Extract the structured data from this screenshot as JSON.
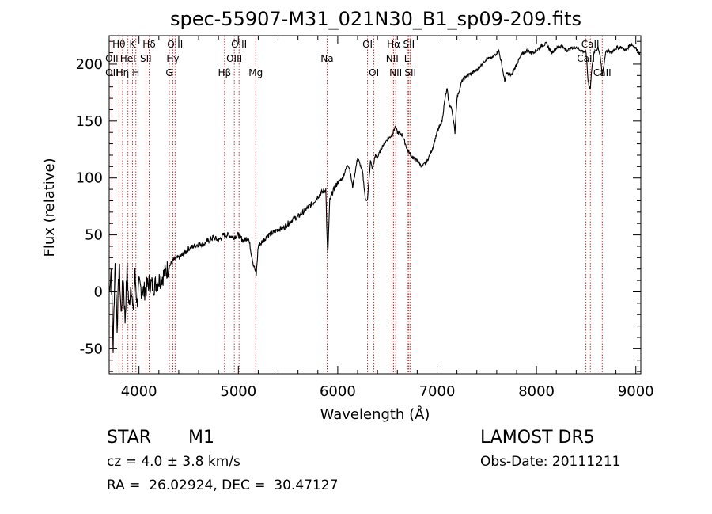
{
  "chart_data": {
    "type": "line",
    "title": "spec-55907-M31_021N30_B1_sp09-209.fits",
    "xlabel": "Wavelength (Å)",
    "ylabel": "Flux (relative)",
    "xlim": [
      3700,
      9050
    ],
    "ylim": [
      -72,
      225
    ],
    "x_ticks": [
      4000,
      5000,
      6000,
      7000,
      8000,
      9000
    ],
    "y_ticks": [
      -50,
      0,
      50,
      100,
      150,
      200
    ],
    "series": [
      {
        "x": [
          3700,
          3720,
          3740,
          3760,
          3780,
          3800,
          3820,
          3840,
          3860,
          3880,
          3900,
          3920,
          3940,
          3960,
          3980,
          4000,
          4050,
          4100,
          4150,
          4200,
          4250,
          4300,
          4350,
          4400,
          4450,
          4500,
          4550,
          4600,
          4650,
          4700,
          4750,
          4800,
          4850,
          4900,
          4950,
          5000,
          5050,
          5100,
          5150,
          5180,
          5200,
          5250,
          5300,
          5350,
          5400,
          5450,
          5500,
          5550,
          5600,
          5650,
          5700,
          5750,
          5800,
          5850,
          5880,
          5893,
          5900,
          5920,
          5950,
          6000,
          6050,
          6100,
          6120,
          6150,
          6200,
          6250,
          6280,
          6300,
          6330,
          6350,
          6380,
          6400,
          6450,
          6500,
          6550,
          6565,
          6580,
          6600,
          6650,
          6700,
          6750,
          6800,
          6850,
          6900,
          6950,
          7000,
          7050,
          7080,
          7100,
          7120,
          7150,
          7180,
          7200,
          7250,
          7300,
          7350,
          7400,
          7450,
          7500,
          7550,
          7600,
          7620,
          7650,
          7680,
          7700,
          7750,
          7800,
          7850,
          7900,
          7950,
          8000,
          8050,
          8100,
          8150,
          8200,
          8250,
          8300,
          8350,
          8400,
          8450,
          8500,
          8520,
          8542,
          8560,
          8580,
          8600,
          8620,
          8640,
          8662,
          8680,
          8700,
          8750,
          8800,
          8850,
          8900,
          8950,
          9000,
          9020,
          9040
        ],
        "y": [
          0,
          20,
          -50,
          30,
          -30,
          25,
          -20,
          15,
          -25,
          20,
          -15,
          10,
          -20,
          15,
          -10,
          5,
          0,
          8,
          5,
          10,
          15,
          22,
          28,
          30,
          33,
          38,
          40,
          42,
          42,
          45,
          48,
          45,
          50,
          50,
          48,
          50,
          45,
          48,
          25,
          15,
          40,
          45,
          50,
          52,
          55,
          56,
          60,
          64,
          66,
          70,
          74,
          78,
          84,
          88,
          90,
          45,
          32,
          80,
          88,
          96,
          100,
          112,
          108,
          92,
          118,
          105,
          80,
          82,
          115,
          108,
          120,
          118,
          128,
          134,
          138,
          142,
          145,
          140,
          138,
          125,
          118,
          115,
          110,
          115,
          125,
          140,
          150,
          170,
          178,
          165,
          160,
          140,
          170,
          185,
          190,
          192,
          195,
          200,
          205,
          205,
          210,
          212,
          200,
          185,
          192,
          190,
          200,
          208,
          212,
          210,
          212,
          216,
          218,
          210,
          214,
          216,
          212,
          214,
          215,
          212,
          210,
          185,
          178,
          200,
          210,
          212,
          215,
          208,
          190,
          200,
          212,
          210,
          214,
          215,
          212,
          218,
          214,
          212,
          208
        ]
      }
    ],
    "lines": [
      {
        "name": "Hθ",
        "x": 3798,
        "row": 0
      },
      {
        "name": "OII",
        "x": 3727,
        "row": 1
      },
      {
        "name": "OII",
        "x": 3727,
        "row": 2
      },
      {
        "name": "K",
        "x": 3934,
        "row": 0
      },
      {
        "name": "HeI",
        "x": 3889,
        "row": 1
      },
      {
        "name": "Hη",
        "x": 3835,
        "row": 2
      },
      {
        "name": "Hδ",
        "x": 4102,
        "row": 0
      },
      {
        "name": "SII",
        "x": 4069,
        "row": 1
      },
      {
        "name": "H",
        "x": 3969,
        "row": 2
      },
      {
        "name": "OIII",
        "x": 4363,
        "row": 0
      },
      {
        "name": "Hγ",
        "x": 4340,
        "row": 1
      },
      {
        "name": "G",
        "x": 4305,
        "row": 2
      },
      {
        "name": "OIII",
        "x": 5007,
        "row": 0
      },
      {
        "name": "OIII",
        "x": 4959,
        "row": 1
      },
      {
        "name": "Hβ",
        "x": 4861,
        "row": 2
      },
      {
        "name": "Mg",
        "x": 5175,
        "row": 2
      },
      {
        "name": "Na",
        "x": 5893,
        "row": 1
      },
      {
        "name": "OI",
        "x": 6300,
        "row": 0
      },
      {
        "name": "OI",
        "x": 6364,
        "row": 2
      },
      {
        "name": "Hα",
        "x": 6563,
        "row": 0
      },
      {
        "name": "NII",
        "x": 6548,
        "row": 1
      },
      {
        "name": "NII",
        "x": 6583,
        "row": 2
      },
      {
        "name": "SII",
        "x": 6716,
        "row": 0
      },
      {
        "name": "Li",
        "x": 6708,
        "row": 1
      },
      {
        "name": "SII",
        "x": 6731,
        "row": 2
      },
      {
        "name": "CaII",
        "x": 8542,
        "row": 0
      },
      {
        "name": "CaII",
        "x": 8498,
        "row": 1
      },
      {
        "name": "CaII",
        "x": 8662,
        "row": 2
      }
    ],
    "grid": false,
    "legend": "none"
  },
  "info": {
    "class": "STAR",
    "subclass": "M1",
    "survey": "LAMOST DR5",
    "cz": "cz = 4.0 ± 3.8 km/s",
    "obs_date": "Obs-Date: 20111211",
    "coords": "RA =  26.02924, DEC =  30.47127"
  }
}
